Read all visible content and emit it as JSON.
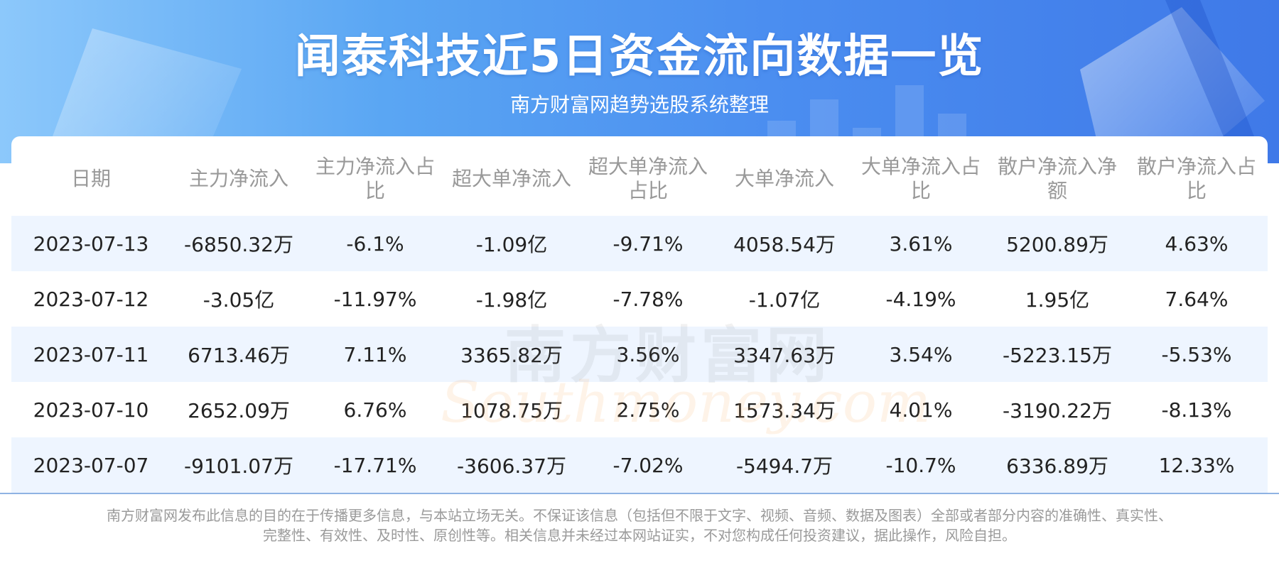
{
  "header": {
    "title": "闻泰科技近5日资金流向数据一览",
    "subtitle": "南方财富网趋势选股系统整理"
  },
  "watermark": {
    "cn": "南方财富网",
    "en": "Southmoney.com"
  },
  "table": {
    "headers": [
      "日期",
      "主力净流入",
      "主力净流入占比",
      "超大单净流入",
      "超大单净流入占比",
      "大单净流入",
      "大单净流入占比",
      "散户净流入净额",
      "散户净流入占比"
    ],
    "rows": [
      [
        "2023-07-13",
        "-6850.32万",
        "-6.1%",
        "-1.09亿",
        "-9.71%",
        "4058.54万",
        "3.61%",
        "5200.89万",
        "4.63%"
      ],
      [
        "2023-07-12",
        "-3.05亿",
        "-11.97%",
        "-1.98亿",
        "-7.78%",
        "-1.07亿",
        "-4.19%",
        "1.95亿",
        "7.64%"
      ],
      [
        "2023-07-11",
        "6713.46万",
        "7.11%",
        "3365.82万",
        "3.56%",
        "3347.63万",
        "3.54%",
        "-5223.15万",
        "-5.53%"
      ],
      [
        "2023-07-10",
        "2652.09万",
        "6.76%",
        "1078.75万",
        "2.75%",
        "1573.34万",
        "4.01%",
        "-3190.22万",
        "-8.13%"
      ],
      [
        "2023-07-07",
        "-9101.07万",
        "-17.71%",
        "-3606.37万",
        "-7.02%",
        "-5494.7万",
        "-10.7%",
        "6336.89万",
        "12.33%"
      ]
    ]
  },
  "footer": {
    "disclaimer_line1": "南方财富网发布此信息的目的在于传播更多信息，与本站立场无关。不保证该信息（包括但不限于文字、视频、音频、数据及图表）全部或者部分内容的准确性、真实性、",
    "disclaimer_line2": "完整性、有效性、及时性、原创性等。相关信息并未经过本网站证实，不对您构成任何投资建议，据此操作，风险自担。"
  },
  "colors": {
    "banner_start": "#8cc8fb",
    "banner_end": "#3f79e8",
    "row_stripe": "#eef5ff",
    "header_text": "#999999",
    "cell_text": "#222222"
  }
}
